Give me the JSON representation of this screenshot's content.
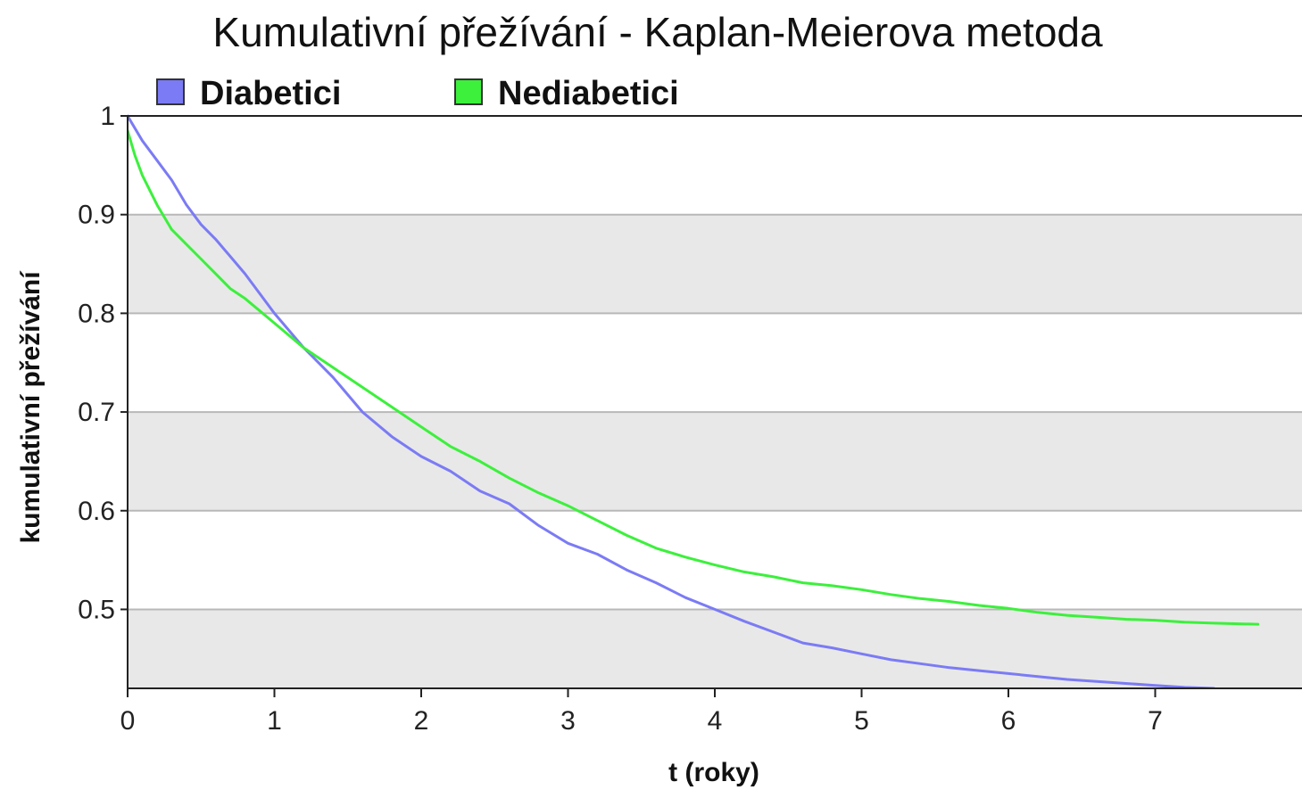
{
  "chart_data": {
    "type": "line",
    "title": "Kumulativní přežívání - Kaplan-Meierova metoda",
    "xlabel": "t (roky)",
    "ylabel": "kumulativní přežívání",
    "xlim": [
      0,
      8
    ],
    "ylim": [
      0.42,
      1.0
    ],
    "x_ticks": [
      "0",
      "1",
      "2",
      "3",
      "4",
      "5",
      "6",
      "7"
    ],
    "y_ticks": [
      "1",
      "0.9",
      "0.8",
      "0.7",
      "0.6",
      "0.5"
    ],
    "grid": "horizontal, alternating grey bands",
    "legend_position": "top-left",
    "background_band_color": "#e8e8e8",
    "gridline_color": "#b8b8b8",
    "series": [
      {
        "name": "Diabetici",
        "color": "#7b7bf5",
        "x": [
          0,
          0.1,
          0.2,
          0.3,
          0.4,
          0.5,
          0.6,
          0.8,
          1.0,
          1.2,
          1.4,
          1.6,
          1.8,
          2.0,
          2.2,
          2.4,
          2.6,
          2.8,
          3.0,
          3.2,
          3.4,
          3.6,
          3.8,
          4.0,
          4.2,
          4.4,
          4.6,
          4.8,
          5.0,
          5.2,
          5.4,
          5.6,
          5.8,
          6.0,
          6.2,
          6.4,
          6.6,
          6.8,
          7.0,
          7.2,
          7.4
        ],
        "y": [
          1.0,
          0.975,
          0.955,
          0.935,
          0.91,
          0.89,
          0.875,
          0.84,
          0.8,
          0.765,
          0.735,
          0.7,
          0.675,
          0.655,
          0.64,
          0.62,
          0.607,
          0.585,
          0.567,
          0.556,
          0.54,
          0.527,
          0.512,
          0.5,
          0.488,
          0.477,
          0.466,
          0.461,
          0.455,
          0.449,
          0.445,
          0.441,
          0.438,
          0.435,
          0.432,
          0.429,
          0.427,
          0.425,
          0.423,
          0.421,
          0.42
        ]
      },
      {
        "name": "Nediabetici",
        "color": "#3cf03c",
        "x": [
          0,
          0.05,
          0.1,
          0.2,
          0.3,
          0.4,
          0.5,
          0.6,
          0.7,
          0.8,
          1.0,
          1.2,
          1.4,
          1.6,
          1.8,
          2.0,
          2.2,
          2.4,
          2.6,
          2.8,
          3.0,
          3.2,
          3.4,
          3.6,
          3.8,
          4.0,
          4.2,
          4.4,
          4.6,
          4.8,
          5.0,
          5.2,
          5.4,
          5.6,
          5.8,
          6.0,
          6.2,
          6.4,
          6.6,
          6.8,
          7.0,
          7.2,
          7.4,
          7.7
        ],
        "y": [
          0.985,
          0.96,
          0.94,
          0.91,
          0.885,
          0.87,
          0.855,
          0.84,
          0.825,
          0.815,
          0.79,
          0.765,
          0.745,
          0.725,
          0.705,
          0.685,
          0.665,
          0.65,
          0.633,
          0.618,
          0.605,
          0.59,
          0.575,
          0.562,
          0.553,
          0.545,
          0.538,
          0.533,
          0.527,
          0.524,
          0.52,
          0.515,
          0.511,
          0.508,
          0.504,
          0.501,
          0.497,
          0.494,
          0.492,
          0.49,
          0.489,
          0.487,
          0.486,
          0.485
        ]
      }
    ]
  }
}
